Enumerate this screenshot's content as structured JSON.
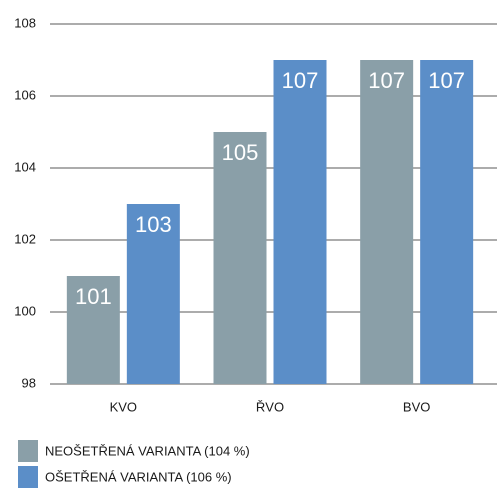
{
  "chart_data": {
    "type": "bar",
    "categories": [
      "KVO",
      "ŘVO",
      "BVO"
    ],
    "series": [
      {
        "name": "NEOŠETŘENÁ VARIANTA (104 %)",
        "color": "#8a9fa8",
        "values": [
          101,
          105,
          107
        ]
      },
      {
        "name": "OŠETŘENÁ VARIANTA (106 %)",
        "color": "#5b8ec8",
        "values": [
          103,
          107,
          107
        ]
      }
    ],
    "ylim": [
      98,
      108
    ],
    "yticks": [
      98,
      100,
      102,
      104,
      106,
      108
    ],
    "grid": true
  }
}
